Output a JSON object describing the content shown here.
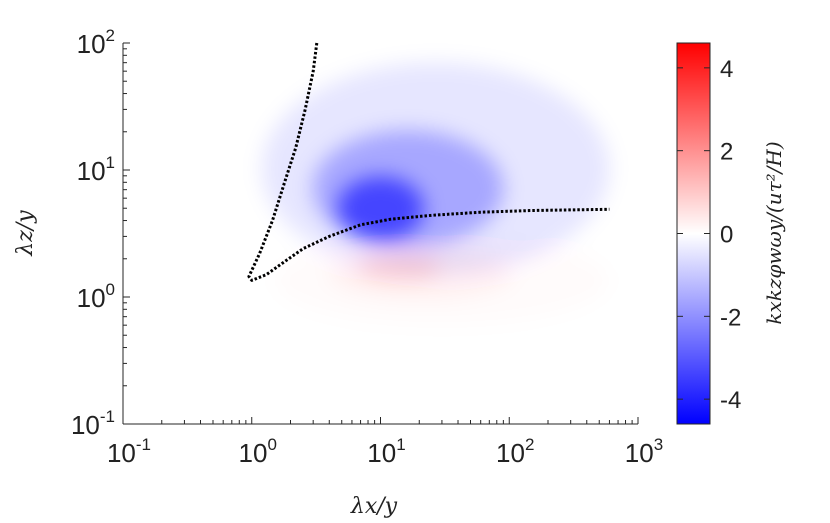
{
  "chart_data": {
    "type": "heatmap",
    "title": "",
    "xlabel": "λx/y",
    "ylabel": "λz/y",
    "x_scale": "log",
    "y_scale": "log",
    "xlim": [
      0.1,
      1000
    ],
    "ylim": [
      0.1,
      100
    ],
    "x_ticks": [
      {
        "value": 0.1,
        "base": "10",
        "exp": "-1"
      },
      {
        "value": 1,
        "base": "10",
        "exp": "0"
      },
      {
        "value": 10,
        "base": "10",
        "exp": "1"
      },
      {
        "value": 100,
        "base": "10",
        "exp": "2"
      },
      {
        "value": 1000,
        "base": "10",
        "exp": "3"
      }
    ],
    "y_ticks": [
      {
        "value": 0.1,
        "base": "10",
        "exp": "-1"
      },
      {
        "value": 1,
        "base": "10",
        "exp": "0"
      },
      {
        "value": 10,
        "base": "10",
        "exp": "1"
      },
      {
        "value": 100,
        "base": "10",
        "exp": "2"
      }
    ],
    "grid": false,
    "colorbar": {
      "label": "kxkzφwωy/(uτ²/H)",
      "range": [
        -4.6,
        4.6
      ],
      "ticks": [
        "-4",
        "-2",
        "0",
        "2",
        "4"
      ],
      "tick_values": [
        -4,
        -2,
        0,
        2,
        4
      ],
      "colormap": "blue-white-red",
      "low_color": "#0000ff",
      "mid_color": "#ffffff",
      "high_color": "#ff0000"
    },
    "regions": [
      {
        "sign": "negative",
        "center_x": 10,
        "center_y": 5,
        "peak_value": -4.5,
        "spread_x": [
          1.2,
          600
        ],
        "spread_y": [
          1.5,
          70
        ]
      },
      {
        "sign": "positive",
        "center_x": 14,
        "center_y": 1.7,
        "peak_value": 0.8,
        "spread_x": [
          1.5,
          600
        ],
        "spread_y": [
          0.6,
          3
        ]
      }
    ],
    "contour": {
      "style": "dotted",
      "color": "#000000",
      "points": [
        [
          3.2,
          100
        ],
        [
          3.0,
          60
        ],
        [
          2.6,
          30
        ],
        [
          2.2,
          15
        ],
        [
          1.8,
          8
        ],
        [
          1.45,
          4
        ],
        [
          1.15,
          2.2
        ],
        [
          0.95,
          1.45
        ],
        [
          1.0,
          1.35
        ],
        [
          1.3,
          1.5
        ],
        [
          1.8,
          1.9
        ],
        [
          2.5,
          2.4
        ],
        [
          4,
          3.0
        ],
        [
          7,
          3.7
        ],
        [
          12,
          4.1
        ],
        [
          25,
          4.4
        ],
        [
          60,
          4.65
        ],
        [
          150,
          4.8
        ],
        [
          600,
          4.9
        ]
      ]
    }
  }
}
